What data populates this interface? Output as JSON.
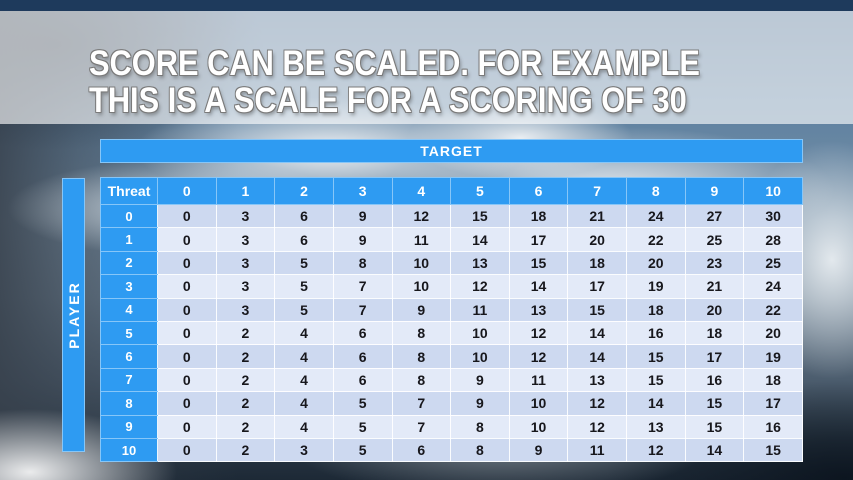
{
  "slide": {
    "title_line1": "SCORE CAN BE SCALED. FOR EXAMPLE",
    "title_line2": "THIS IS A SCALE FOR A SCORING OF 30"
  },
  "table": {
    "target_label": "TARGET",
    "player_label": "PLAYER",
    "corner_label": "Threat",
    "column_headers": [
      "0",
      "1",
      "2",
      "3",
      "4",
      "5",
      "6",
      "7",
      "8",
      "9",
      "10"
    ],
    "rows": [
      {
        "header": "0",
        "cells": [
          0,
          3,
          6,
          9,
          12,
          15,
          18,
          21,
          24,
          27,
          30
        ]
      },
      {
        "header": "1",
        "cells": [
          0,
          3,
          6,
          9,
          11,
          14,
          17,
          20,
          22,
          25,
          28
        ]
      },
      {
        "header": "2",
        "cells": [
          0,
          3,
          5,
          8,
          10,
          13,
          15,
          18,
          20,
          23,
          25
        ]
      },
      {
        "header": "3",
        "cells": [
          0,
          3,
          5,
          7,
          10,
          12,
          14,
          17,
          19,
          21,
          24
        ]
      },
      {
        "header": "4",
        "cells": [
          0,
          3,
          5,
          7,
          9,
          11,
          13,
          15,
          18,
          20,
          22
        ]
      },
      {
        "header": "5",
        "cells": [
          0,
          2,
          4,
          6,
          8,
          10,
          12,
          14,
          16,
          18,
          20
        ]
      },
      {
        "header": "6",
        "cells": [
          0,
          2,
          4,
          6,
          8,
          10,
          12,
          14,
          15,
          17,
          19
        ]
      },
      {
        "header": "7",
        "cells": [
          0,
          2,
          4,
          6,
          8,
          9,
          11,
          13,
          15,
          16,
          18
        ]
      },
      {
        "header": "8",
        "cells": [
          0,
          2,
          4,
          5,
          7,
          9,
          10,
          12,
          14,
          15,
          17
        ]
      },
      {
        "header": "9",
        "cells": [
          0,
          2,
          4,
          5,
          7,
          8,
          10,
          12,
          13,
          15,
          16
        ]
      },
      {
        "header": "10",
        "cells": [
          0,
          2,
          3,
          5,
          6,
          8,
          9,
          11,
          12,
          14,
          15
        ]
      }
    ]
  },
  "colors": {
    "accent_blue": "#2E9BF2",
    "accent_border": "#86C6F8",
    "row_even": "#CDD9F0",
    "row_odd": "#E3EAF8",
    "top_bar": "#1E3A5C",
    "cell_text": "#17171C",
    "header_text": "#FFFFFF",
    "title_text": "#FFFFFF",
    "title_outline": "#7A7A7A"
  }
}
